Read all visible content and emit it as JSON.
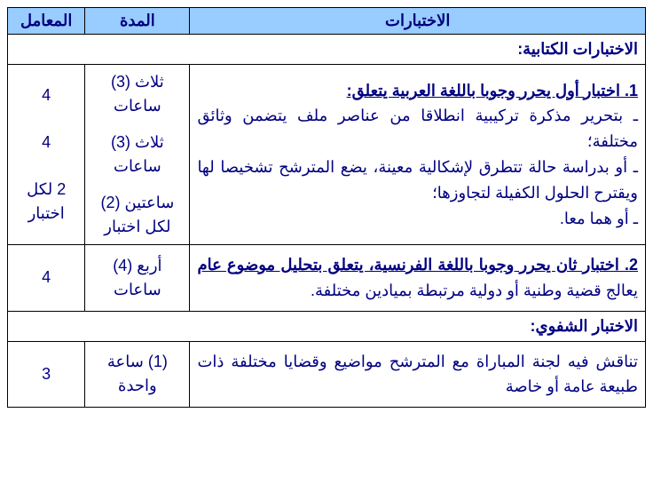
{
  "headers": {
    "tests": "الاختبارات",
    "duration": "المدة",
    "coefficient": "المعامل"
  },
  "sections": {
    "written": "الاختبارات الكتابية:",
    "oral": "الاختبار الشفوي:"
  },
  "row1": {
    "title": "1. اختبار أول يحرر وجوبا باللغة العربية يتعلق:",
    "line1": "ـ بتحرير مذكرة تركيبية انطلاقا من عناصر ملف يتضمن وثائق مختلفة؛",
    "line2": "ـ أو بدراسة حالة تتطرق لإشكالية معينة، يضع المترشح تشخيصا لها ويقترح الحلول الكفيلة لتجاوزها؛",
    "line3": "ـ أو هما معا.",
    "dur1": "ثلاث (3) ساعات",
    "dur2": "ثلاث (3) ساعات",
    "dur3": "ساعتين (2) لكل اختبار",
    "coef1": "4",
    "coef2": "4",
    "coef3": "2 لكل اختبار"
  },
  "row2": {
    "title": "2. اختبار ثان يحرر وجوبا باللغة الفرنسية، يتعلق بتحليل موضوع عام",
    "rest": " يعالج قضية وطنية أو دولية مرتبطة بميادين مختلفة.",
    "duration": "أربع (4) ساعات",
    "coef": "4"
  },
  "row3": {
    "text": "تناقش فيه لجنة المباراة مع المترشح مواضيع وقضايا مختلفة ذات طبيعة عامة أو خاصة",
    "duration": "(1) ساعة واحدة",
    "coef": "3"
  },
  "colors": {
    "header_bg": "#99ccff",
    "text": "#000080",
    "border": "#000000"
  }
}
